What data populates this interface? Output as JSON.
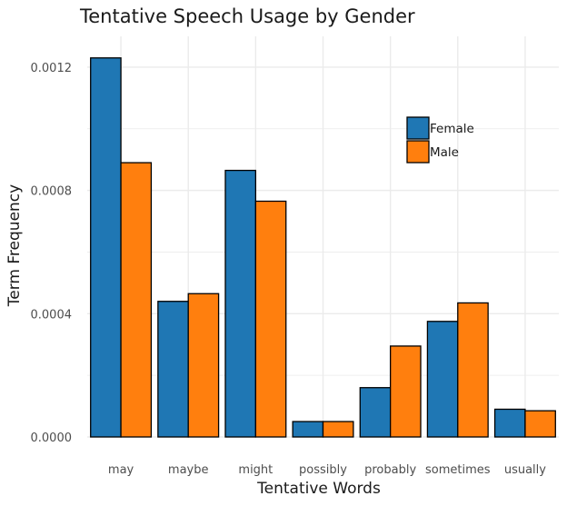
{
  "chart_data": {
    "type": "bar",
    "title": "Tentative Speech Usage by Gender",
    "xlabel": "Tentative Words",
    "ylabel": "Term Frequency",
    "categories": [
      "may",
      "maybe",
      "might",
      "possibly",
      "probably",
      "sometimes",
      "usually"
    ],
    "series": [
      {
        "name": "Female",
        "color": "#1f77b4",
        "values": [
          0.00123,
          0.00044,
          0.000865,
          5e-05,
          0.00016,
          0.000375,
          9e-05
        ]
      },
      {
        "name": "Male",
        "color": "#ff7f0e",
        "values": [
          0.00089,
          0.000465,
          0.000765,
          5e-05,
          0.000295,
          0.000435,
          8.5e-05
        ]
      }
    ],
    "ylim": [
      0,
      0.0013
    ],
    "yticks": [
      0,
      0.0004,
      0.0008,
      0.0012
    ],
    "ytick_labels": [
      "0.0000",
      "0.0004",
      "0.0008",
      "0.0012"
    ],
    "grid": true,
    "legend": {
      "position": "top-right",
      "entries": [
        "Female",
        "Male"
      ]
    }
  }
}
